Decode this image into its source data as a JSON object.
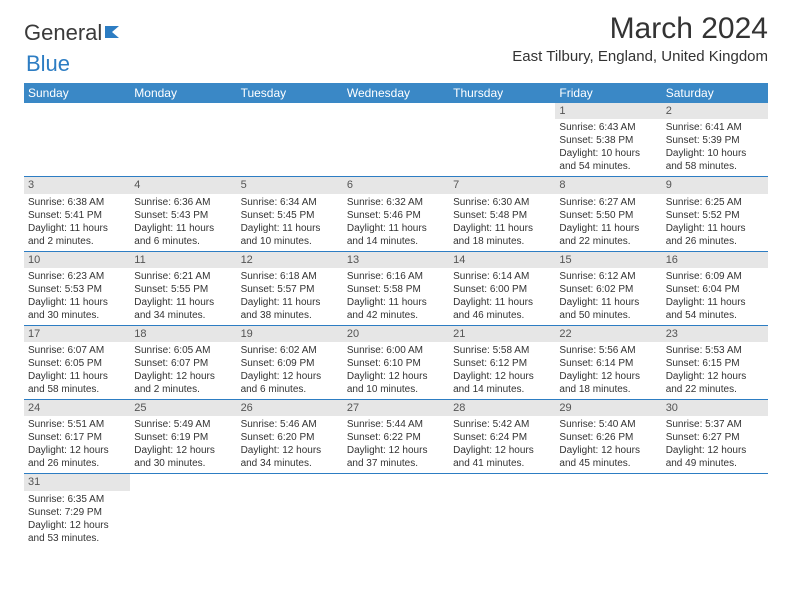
{
  "logo": {
    "text1": "General",
    "text2": "Blue"
  },
  "title": "March 2024",
  "location": "East Tilbury, England, United Kingdom",
  "colors": {
    "header_bg": "#3a88c6",
    "header_text": "#ffffff",
    "daynum_bg": "#e6e6e6",
    "row_border": "#2d7dc3",
    "logo_blue": "#2d7dc3"
  },
  "weekdays": [
    "Sunday",
    "Monday",
    "Tuesday",
    "Wednesday",
    "Thursday",
    "Friday",
    "Saturday"
  ],
  "weeks": [
    [
      null,
      null,
      null,
      null,
      null,
      {
        "n": "1",
        "sr": "Sunrise: 6:43 AM",
        "ss": "Sunset: 5:38 PM",
        "dl": "Daylight: 10 hours and 54 minutes."
      },
      {
        "n": "2",
        "sr": "Sunrise: 6:41 AM",
        "ss": "Sunset: 5:39 PM",
        "dl": "Daylight: 10 hours and 58 minutes."
      }
    ],
    [
      {
        "n": "3",
        "sr": "Sunrise: 6:38 AM",
        "ss": "Sunset: 5:41 PM",
        "dl": "Daylight: 11 hours and 2 minutes."
      },
      {
        "n": "4",
        "sr": "Sunrise: 6:36 AM",
        "ss": "Sunset: 5:43 PM",
        "dl": "Daylight: 11 hours and 6 minutes."
      },
      {
        "n": "5",
        "sr": "Sunrise: 6:34 AM",
        "ss": "Sunset: 5:45 PM",
        "dl": "Daylight: 11 hours and 10 minutes."
      },
      {
        "n": "6",
        "sr": "Sunrise: 6:32 AM",
        "ss": "Sunset: 5:46 PM",
        "dl": "Daylight: 11 hours and 14 minutes."
      },
      {
        "n": "7",
        "sr": "Sunrise: 6:30 AM",
        "ss": "Sunset: 5:48 PM",
        "dl": "Daylight: 11 hours and 18 minutes."
      },
      {
        "n": "8",
        "sr": "Sunrise: 6:27 AM",
        "ss": "Sunset: 5:50 PM",
        "dl": "Daylight: 11 hours and 22 minutes."
      },
      {
        "n": "9",
        "sr": "Sunrise: 6:25 AM",
        "ss": "Sunset: 5:52 PM",
        "dl": "Daylight: 11 hours and 26 minutes."
      }
    ],
    [
      {
        "n": "10",
        "sr": "Sunrise: 6:23 AM",
        "ss": "Sunset: 5:53 PM",
        "dl": "Daylight: 11 hours and 30 minutes."
      },
      {
        "n": "11",
        "sr": "Sunrise: 6:21 AM",
        "ss": "Sunset: 5:55 PM",
        "dl": "Daylight: 11 hours and 34 minutes."
      },
      {
        "n": "12",
        "sr": "Sunrise: 6:18 AM",
        "ss": "Sunset: 5:57 PM",
        "dl": "Daylight: 11 hours and 38 minutes."
      },
      {
        "n": "13",
        "sr": "Sunrise: 6:16 AM",
        "ss": "Sunset: 5:58 PM",
        "dl": "Daylight: 11 hours and 42 minutes."
      },
      {
        "n": "14",
        "sr": "Sunrise: 6:14 AM",
        "ss": "Sunset: 6:00 PM",
        "dl": "Daylight: 11 hours and 46 minutes."
      },
      {
        "n": "15",
        "sr": "Sunrise: 6:12 AM",
        "ss": "Sunset: 6:02 PM",
        "dl": "Daylight: 11 hours and 50 minutes."
      },
      {
        "n": "16",
        "sr": "Sunrise: 6:09 AM",
        "ss": "Sunset: 6:04 PM",
        "dl": "Daylight: 11 hours and 54 minutes."
      }
    ],
    [
      {
        "n": "17",
        "sr": "Sunrise: 6:07 AM",
        "ss": "Sunset: 6:05 PM",
        "dl": "Daylight: 11 hours and 58 minutes."
      },
      {
        "n": "18",
        "sr": "Sunrise: 6:05 AM",
        "ss": "Sunset: 6:07 PM",
        "dl": "Daylight: 12 hours and 2 minutes."
      },
      {
        "n": "19",
        "sr": "Sunrise: 6:02 AM",
        "ss": "Sunset: 6:09 PM",
        "dl": "Daylight: 12 hours and 6 minutes."
      },
      {
        "n": "20",
        "sr": "Sunrise: 6:00 AM",
        "ss": "Sunset: 6:10 PM",
        "dl": "Daylight: 12 hours and 10 minutes."
      },
      {
        "n": "21",
        "sr": "Sunrise: 5:58 AM",
        "ss": "Sunset: 6:12 PM",
        "dl": "Daylight: 12 hours and 14 minutes."
      },
      {
        "n": "22",
        "sr": "Sunrise: 5:56 AM",
        "ss": "Sunset: 6:14 PM",
        "dl": "Daylight: 12 hours and 18 minutes."
      },
      {
        "n": "23",
        "sr": "Sunrise: 5:53 AM",
        "ss": "Sunset: 6:15 PM",
        "dl": "Daylight: 12 hours and 22 minutes."
      }
    ],
    [
      {
        "n": "24",
        "sr": "Sunrise: 5:51 AM",
        "ss": "Sunset: 6:17 PM",
        "dl": "Daylight: 12 hours and 26 minutes."
      },
      {
        "n": "25",
        "sr": "Sunrise: 5:49 AM",
        "ss": "Sunset: 6:19 PM",
        "dl": "Daylight: 12 hours and 30 minutes."
      },
      {
        "n": "26",
        "sr": "Sunrise: 5:46 AM",
        "ss": "Sunset: 6:20 PM",
        "dl": "Daylight: 12 hours and 34 minutes."
      },
      {
        "n": "27",
        "sr": "Sunrise: 5:44 AM",
        "ss": "Sunset: 6:22 PM",
        "dl": "Daylight: 12 hours and 37 minutes."
      },
      {
        "n": "28",
        "sr": "Sunrise: 5:42 AM",
        "ss": "Sunset: 6:24 PM",
        "dl": "Daylight: 12 hours and 41 minutes."
      },
      {
        "n": "29",
        "sr": "Sunrise: 5:40 AM",
        "ss": "Sunset: 6:26 PM",
        "dl": "Daylight: 12 hours and 45 minutes."
      },
      {
        "n": "30",
        "sr": "Sunrise: 5:37 AM",
        "ss": "Sunset: 6:27 PM",
        "dl": "Daylight: 12 hours and 49 minutes."
      }
    ],
    [
      {
        "n": "31",
        "sr": "Sunrise: 6:35 AM",
        "ss": "Sunset: 7:29 PM",
        "dl": "Daylight: 12 hours and 53 minutes."
      },
      null,
      null,
      null,
      null,
      null,
      null
    ]
  ]
}
